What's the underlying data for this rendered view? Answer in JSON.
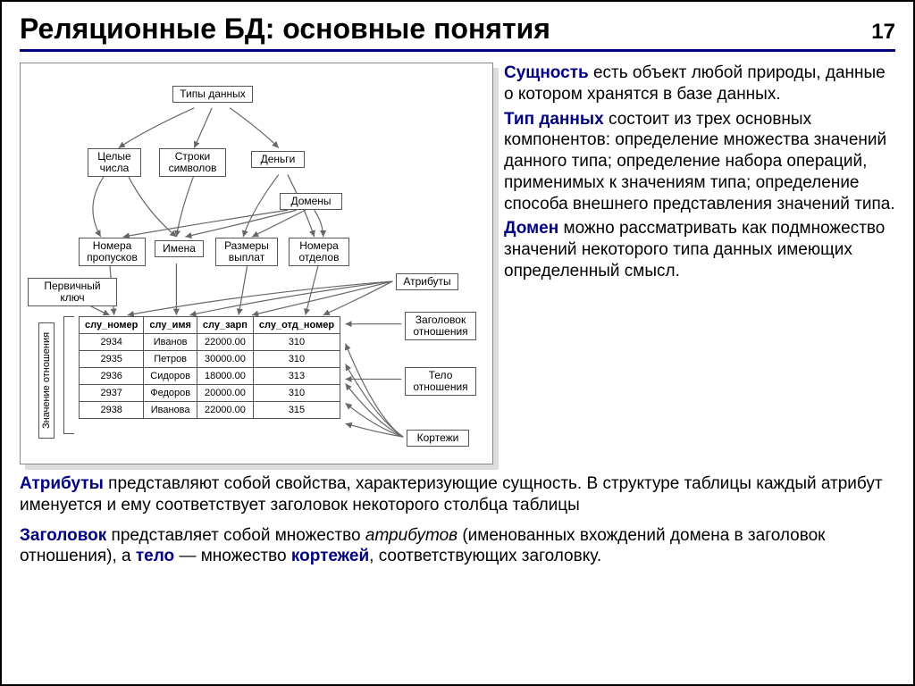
{
  "slide": {
    "title": "Реляционные БД: основные понятия",
    "page_number": "17",
    "colors": {
      "term": "#000080",
      "underline": "#000080",
      "text": "#000000",
      "box_border": "#555555",
      "shadow": "#dddddd",
      "bg": "#ffffff"
    }
  },
  "diagram": {
    "boxes": {
      "data_types": "Типы данных",
      "integers": "Целые числа",
      "strings": "Строки символов",
      "money": "Деньги",
      "domains": "Домены",
      "pass_numbers": "Номера пропусков",
      "names": "Имена",
      "pay_sizes": "Размеры выплат",
      "dept_numbers": "Номера отделов",
      "primary_key": "Первичный ключ",
      "attributes": "Атрибуты",
      "relation_header": "Заголовок отношения",
      "relation_body": "Тело отношения",
      "tuples": "Кортежи",
      "relation_value": "Значение отношения"
    },
    "table": {
      "columns": [
        "слу_номер",
        "слу_имя",
        "слу_зарп",
        "слу_отд_номер"
      ],
      "rows": [
        [
          "2934",
          "Иванов",
          "22000.00",
          "310"
        ],
        [
          "2935",
          "Петров",
          "30000.00",
          "310"
        ],
        [
          "2936",
          "Сидоров",
          "18000.00",
          "313"
        ],
        [
          "2937",
          "Федоров",
          "20000.00",
          "310"
        ],
        [
          "2938",
          "Иванова",
          "22000.00",
          "315"
        ]
      ]
    }
  },
  "definitions": {
    "entity_term": "Сущность",
    "entity_text": " есть объект любой природы, данные о котором хранятся в базе данных.",
    "datatype_term": "Тип данных",
    "datatype_text": " состоит из трех основных компонентов: определение множества значений данного типа; определение набора операций, применимых к значениям типа; определение способа внешнего представления значений типа.",
    "domain_term": "Домен",
    "domain_text": " можно рассматривать как подмножество значений некоторого типа данных имеющих определенный смысл.",
    "attr_term": "Атрибуты",
    "attr_text": " представляют собой свойства, характеризующие сущность. В структуре таблицы каждый атрибут именуется и ему соответствует заголовок некоторого столбца таблицы",
    "header_term": "Заголовок",
    "header_p1": " представляет собой множество ",
    "header_i1": "атрибутов",
    "header_p2": " (именованных вхождений домена в заголовок отношения), а ",
    "body_term": "тело",
    "header_p3": " — множество ",
    "tuples_term": "кортежей",
    "header_p4": ", соответствующих заголовку."
  }
}
